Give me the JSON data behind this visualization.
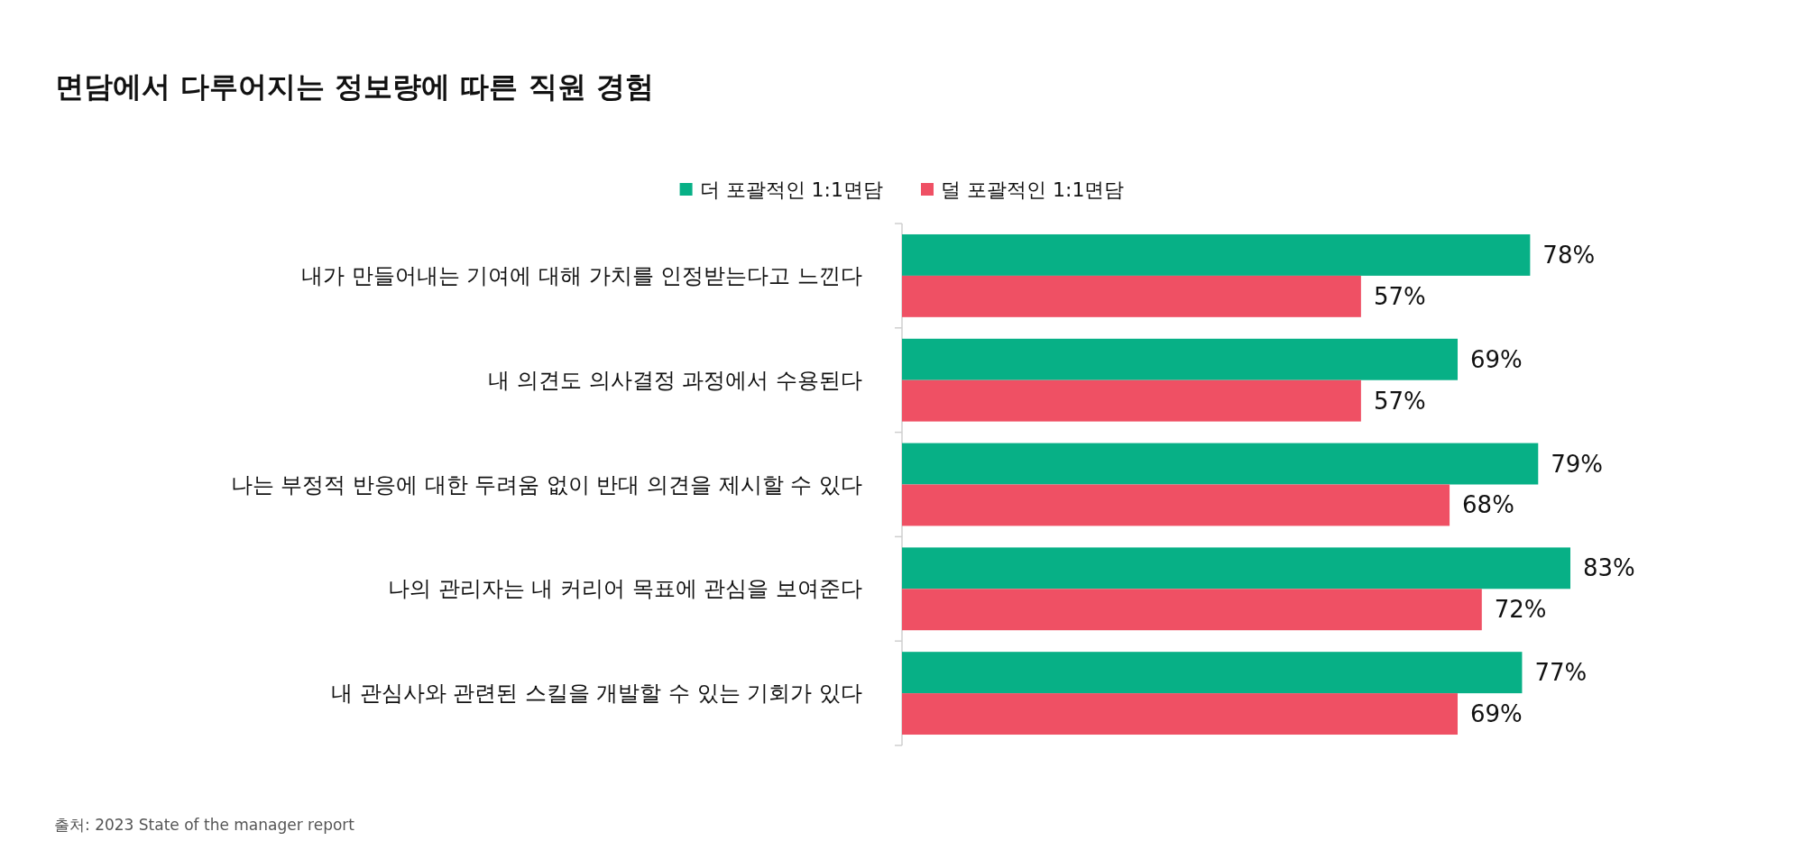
{
  "chart_data": {
    "type": "bar",
    "orientation": "horizontal",
    "title": "면담에서 다루어지는 정보량에 따른 직원 경험",
    "categories": [
      "내가 만들어내는 기여에 대해 가치를 인정받는다고 느낀다",
      "내 의견도 의사결정 과정에서 수용된다",
      "나는 부정적 반응에 대한 두려움 없이 반대 의견을 제시할 수 있다",
      "나의 관리자는 내 커리어 목표에 관심을 보여준다",
      "내 관심사와 관련된 스킬을 개발할 수 있는 기회가 있다"
    ],
    "series": [
      {
        "name": "더 포괄적인 1:1면담",
        "color": "#07b086",
        "values": [
          78,
          69,
          79,
          83,
          77
        ],
        "value_labels": [
          "78%",
          "69%",
          "79%",
          "83%",
          "77%"
        ]
      },
      {
        "name": "덜 포괄적인 1:1면담",
        "color": "#ef5064",
        "values": [
          57,
          57,
          68,
          72,
          69
        ],
        "value_labels": [
          "57%",
          "57%",
          "68%",
          "72%",
          "69%"
        ]
      }
    ],
    "legend": "top",
    "annotations": [
      "출처: 2023 State of the manager report"
    ]
  }
}
